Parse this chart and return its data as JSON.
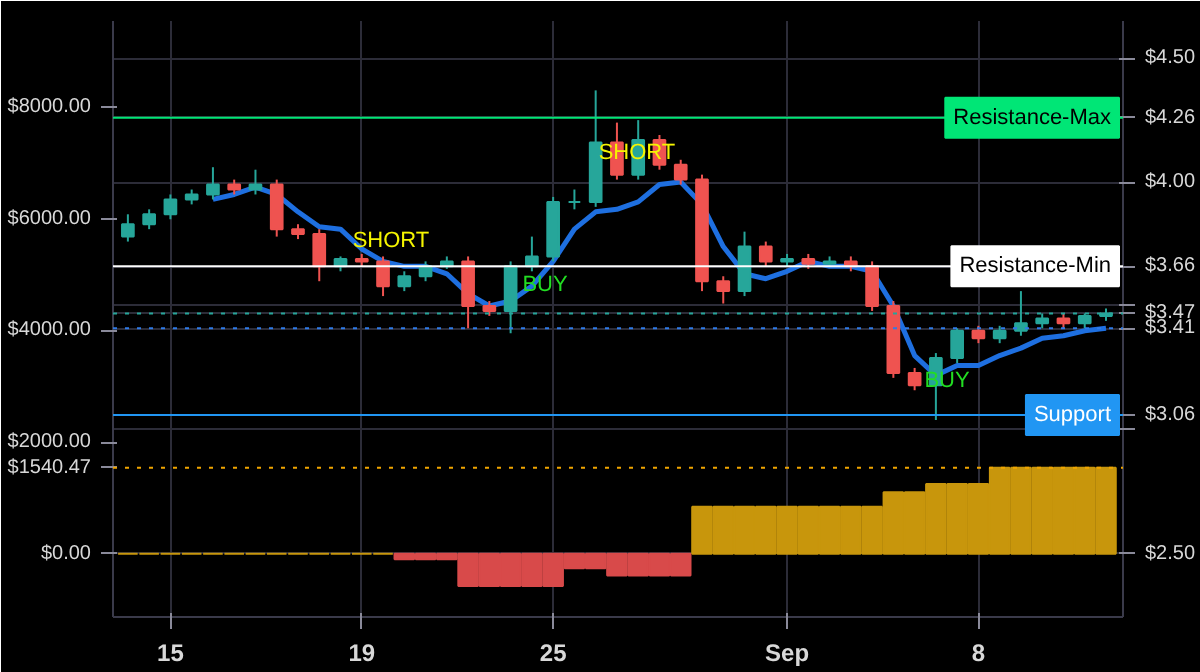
{
  "chart_data": {
    "type": "candlestick",
    "categories": [
      null,
      null,
      "15",
      null,
      null,
      null,
      null,
      null,
      null,
      null,
      null,
      "19",
      null,
      null,
      null,
      null,
      null,
      null,
      null,
      null,
      "25",
      null,
      null,
      null,
      null,
      null,
      null,
      null,
      null,
      null,
      null,
      "Sep",
      null,
      null,
      null,
      null,
      null,
      null,
      null,
      null,
      "8",
      null,
      null,
      null,
      null,
      null,
      null
    ],
    "ohlc": [
      [
        3.78,
        3.87,
        3.76,
        3.83
      ],
      [
        3.83,
        3.89,
        3.81,
        3.87
      ],
      [
        3.87,
        3.95,
        3.85,
        3.93
      ],
      [
        3.93,
        3.97,
        3.91,
        3.95
      ],
      [
        3.95,
        4.06,
        3.93,
        3.99
      ],
      [
        3.99,
        4.01,
        3.95,
        3.97
      ],
      [
        3.97,
        4.05,
        3.95,
        3.99
      ],
      [
        3.99,
        4.01,
        3.78,
        3.81
      ],
      [
        3.81,
        3.83,
        3.77,
        3.79
      ],
      [
        3.79,
        3.81,
        3.6,
        3.66
      ],
      [
        3.66,
        3.7,
        3.64,
        3.69
      ],
      [
        3.69,
        3.71,
        3.66,
        3.68
      ],
      [
        3.68,
        3.7,
        3.54,
        3.58
      ],
      [
        3.58,
        3.64,
        3.56,
        3.62
      ],
      [
        3.62,
        3.68,
        3.6,
        3.66
      ],
      [
        3.66,
        3.7,
        3.65,
        3.68
      ],
      [
        3.68,
        3.7,
        3.41,
        3.5
      ],
      [
        3.5,
        3.52,
        3.46,
        3.48
      ],
      [
        3.48,
        3.68,
        3.39,
        3.66
      ],
      [
        3.66,
        3.78,
        3.64,
        3.7
      ],
      [
        3.7,
        3.94,
        3.68,
        3.92
      ],
      [
        3.92,
        3.97,
        3.89,
        3.92
      ],
      [
        3.92,
        4.37,
        3.9,
        4.16
      ],
      [
        4.16,
        4.24,
        4.01,
        4.03
      ],
      [
        4.03,
        4.25,
        4.01,
        4.17
      ],
      [
        4.17,
        4.19,
        4.05,
        4.07
      ],
      [
        4.07,
        4.09,
        3.99,
        4.01
      ],
      [
        4.01,
        4.03,
        3.56,
        3.6
      ],
      [
        3.6,
        3.62,
        3.51,
        3.56
      ],
      [
        3.56,
        3.8,
        3.54,
        3.74
      ],
      [
        3.74,
        3.76,
        3.66,
        3.68
      ],
      [
        3.68,
        3.71,
        3.66,
        3.69
      ],
      [
        3.69,
        3.71,
        3.65,
        3.67
      ],
      [
        3.67,
        3.7,
        3.66,
        3.68
      ],
      [
        3.68,
        3.7,
        3.64,
        3.66
      ],
      [
        3.66,
        3.68,
        3.48,
        3.5
      ],
      [
        3.5,
        3.52,
        3.21,
        3.23
      ],
      [
        3.23,
        3.25,
        3.16,
        3.18
      ],
      [
        3.18,
        3.31,
        3.04,
        3.29
      ],
      [
        3.29,
        3.41,
        3.27,
        3.4
      ],
      [
        3.4,
        3.42,
        3.35,
        3.37
      ],
      [
        3.37,
        3.42,
        3.35,
        3.4
      ],
      [
        3.4,
        3.56,
        3.38,
        3.43
      ],
      [
        3.43,
        3.47,
        3.41,
        3.45
      ],
      [
        3.45,
        3.47,
        3.41,
        3.43
      ],
      [
        3.43,
        3.47,
        3.41,
        3.46
      ],
      [
        3.46,
        3.49,
        3.44,
        3.47
      ]
    ],
    "series": [
      {
        "type": "line",
        "color": "#1e6fe0",
        "values": [
          null,
          null,
          null,
          null,
          3.93,
          3.95,
          3.98,
          3.95,
          3.88,
          3.82,
          3.81,
          3.73,
          3.68,
          3.66,
          3.66,
          3.63,
          3.55,
          3.5,
          3.52,
          3.58,
          3.68,
          3.81,
          3.88,
          3.89,
          3.92,
          3.99,
          4.0,
          3.91,
          3.74,
          3.63,
          3.61,
          3.64,
          3.68,
          3.66,
          3.66,
          3.64,
          3.5,
          3.3,
          3.22,
          3.26,
          3.26,
          3.3,
          3.33,
          3.37,
          3.38,
          3.4,
          3.41
        ]
      },
      {
        "type": "bar",
        "axis": "y2",
        "values": [
          0,
          0,
          0,
          0,
          0,
          0,
          0,
          0,
          0,
          0,
          0,
          0,
          0,
          -100,
          -100,
          -100,
          -580,
          -580,
          -580,
          -580,
          -580,
          -260,
          -260,
          -390,
          -390,
          -390,
          -390,
          840,
          840,
          840,
          840,
          840,
          840,
          840,
          840,
          840,
          1100,
          1100,
          1250,
          1250,
          1250,
          1540,
          1540,
          1540,
          1540,
          1540,
          1540
        ],
        "colors": [
          "#c8960c",
          "#c8960c",
          "#c8960c",
          "#c8960c",
          "#c8960c",
          "#c8960c",
          "#c8960c",
          "#c8960c",
          "#c8960c",
          "#c8960c",
          "#c8960c",
          "#c8960c",
          "#c8960c",
          "#d84a4a",
          "#d84a4a",
          "#d84a4a",
          "#d84a4a",
          "#d84a4a",
          "#d84a4a",
          "#d84a4a",
          "#d84a4a",
          "#d84a4a",
          "#d84a4a",
          "#d84a4a",
          "#d84a4a",
          "#d84a4a",
          "#d84a4a",
          "#c8960c",
          "#c8960c",
          "#c8960c",
          "#c8960c",
          "#c8960c",
          "#c8960c",
          "#c8960c",
          "#c8960c",
          "#c8960c",
          "#c8960c",
          "#c8960c",
          "#c8960c",
          "#c8960c",
          "#c8960c",
          "#c8960c",
          "#c8960c",
          "#c8960c",
          "#c8960c",
          "#c8960c",
          "#c8960c"
        ]
      }
    ],
    "ylim": [
      2.245,
      4.65
    ],
    "yticks": [
      {
        "value": 2.5,
        "label": "$2.50"
      },
      {
        "value": 3.0,
        "label": null
      },
      {
        "value": 3.06,
        "label": "$3.06"
      },
      {
        "value": 3.41,
        "label": "$3.41"
      },
      {
        "value": 3.47,
        "label": "$3.47"
      },
      {
        "value": 3.5,
        "label": null
      },
      {
        "value": 3.66,
        "label": "$3.66"
      },
      {
        "value": 4.0,
        "label": "$4.00"
      },
      {
        "value": 4.26,
        "label": "$4.26"
      },
      {
        "value": 4.5,
        "label": "$4.50"
      }
    ],
    "y2lim": [
      -1134,
      9543
    ],
    "y2ticks": [
      {
        "value": 0,
        "label": "$0.00"
      },
      {
        "value": 1540.47,
        "label": "$1540.47"
      },
      {
        "value": 2000,
        "label": "$2000.00"
      },
      {
        "value": 4000,
        "label": "$4000.00"
      },
      {
        "value": 6000,
        "label": "$6000.00"
      },
      {
        "value": 8000,
        "label": "$8000.00"
      }
    ],
    "ref_lines": [
      {
        "axis": "y",
        "value": 4.26,
        "label": "Resistance-Max",
        "color": "#00e676",
        "line_style": "solid"
      },
      {
        "axis": "y",
        "value": 3.66,
        "label": "Resistance-Min",
        "color": "#ffffff",
        "line_style": "solid"
      },
      {
        "axis": "y",
        "value": 3.47,
        "color": "#26a69a",
        "line_style": "dotted"
      },
      {
        "axis": "y",
        "value": 3.41,
        "color": "#2f7be8",
        "line_style": "dotted"
      },
      {
        "axis": "y",
        "value": 3.06,
        "label": "Support",
        "color": "#2196f3",
        "line_style": "solid"
      },
      {
        "axis": "y2",
        "value": 1540.47,
        "color": "#f0a500",
        "line_style": "dotted"
      }
    ],
    "annotations": [
      "SHORT",
      "BUY",
      "SHORT",
      "BUY"
    ],
    "grid": true
  }
}
